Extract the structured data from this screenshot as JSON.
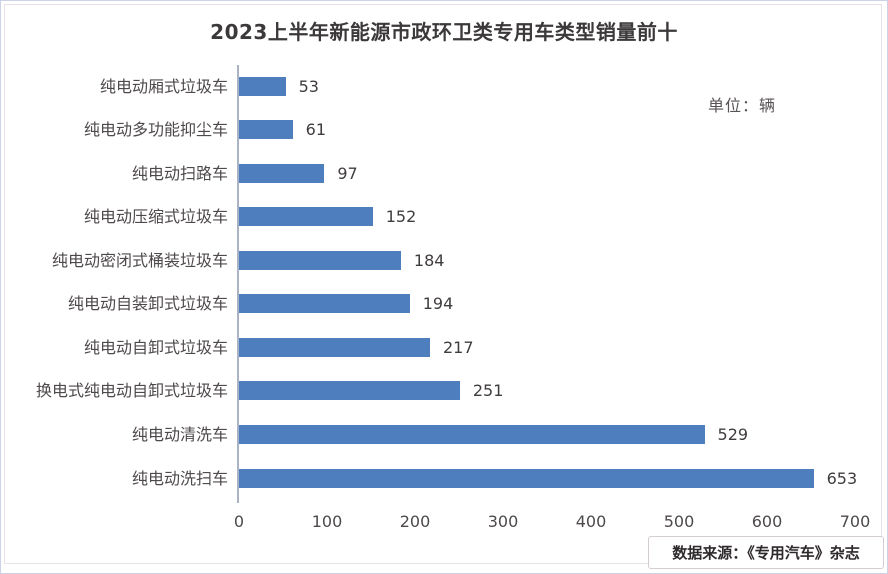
{
  "chart_data": {
    "type": "bar",
    "orientation": "horizontal",
    "title": "2023上半年新能源市政环卫类专用车类型销量前十",
    "unit_label": "单位：辆",
    "categories": [
      "纯电动厢式垃圾车",
      "纯电动多功能抑尘车",
      "纯电动扫路车",
      "纯电动压缩式垃圾车",
      "纯电动密闭式桶装垃圾车",
      "纯电动自装卸式垃圾车",
      "纯电动自卸式垃圾车",
      "换电式纯电动自卸式垃圾车",
      "纯电动清洗车",
      "纯电动洗扫车"
    ],
    "values": [
      53,
      61,
      97,
      152,
      184,
      194,
      217,
      251,
      529,
      653
    ],
    "xlabel": "",
    "ylabel": "",
    "xlim": [
      0,
      700
    ],
    "x_ticks": [
      0,
      100,
      200,
      300,
      400,
      500,
      600,
      700
    ],
    "bar_color": "#4E7EBE",
    "grid": false,
    "legend": false,
    "data_labels": true
  },
  "footer": {
    "source_label": "数据来源：《专用汽车》杂志"
  }
}
